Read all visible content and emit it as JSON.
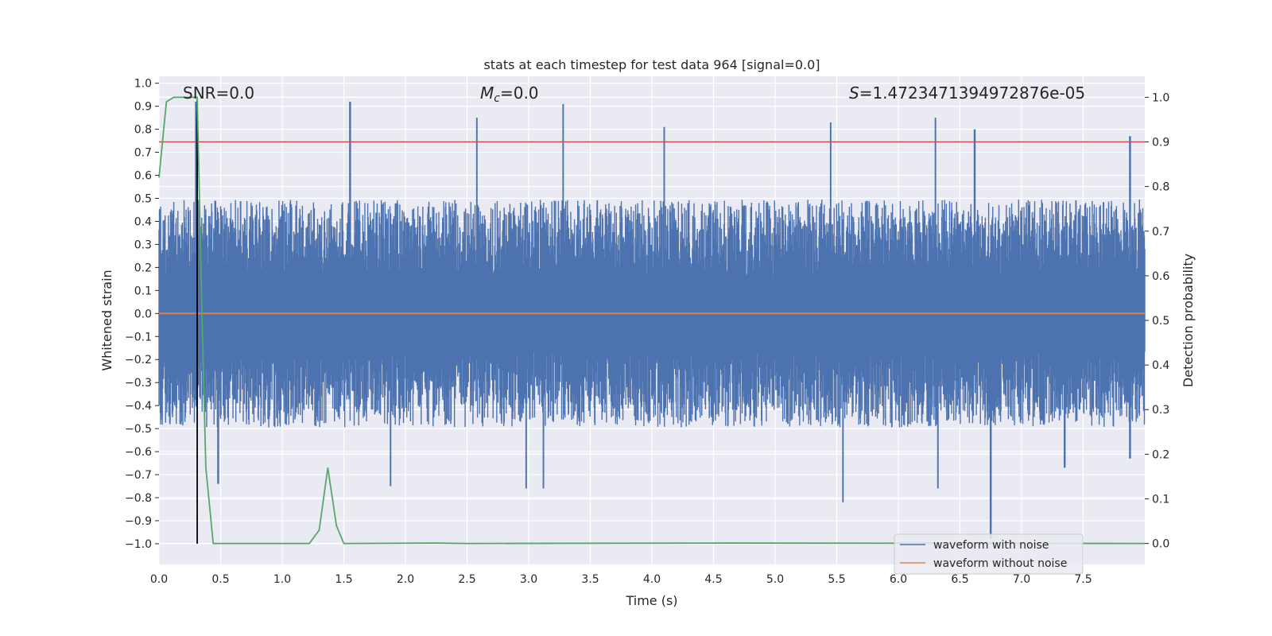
{
  "chart_data": {
    "type": "line",
    "title": "stats at each timestep for test data 964 [signal=0.0]",
    "xlabel": "Time (s)",
    "ylabel": "Whitened strain",
    "y2label": "Detection probability",
    "xlim": [
      0.0,
      8.0
    ],
    "ylim": [
      -1.09,
      1.03
    ],
    "y2lim": [
      -0.047,
      1.047
    ],
    "xticks": [
      "0.0",
      "0.5",
      "1.0",
      "1.5",
      "2.0",
      "2.5",
      "3.0",
      "3.5",
      "4.0",
      "4.5",
      "5.0",
      "5.5",
      "6.0",
      "6.5",
      "7.0",
      "7.5"
    ],
    "yticks": [
      "1.0",
      "0.9",
      "0.8",
      "0.7",
      "0.6",
      "0.5",
      "0.4",
      "0.3",
      "0.2",
      "0.1",
      "0.0",
      "−0.1",
      "−0.2",
      "−0.3",
      "−0.4",
      "−0.5",
      "−0.6",
      "−0.7",
      "−0.8",
      "−0.9",
      "−1.0"
    ],
    "y2ticks": [
      "1.0",
      "0.9",
      "0.8",
      "0.7",
      "0.6",
      "0.5",
      "0.4",
      "0.3",
      "0.2",
      "0.1",
      "0.0"
    ],
    "grid": true,
    "legend_placement": "lower-right",
    "annotations": {
      "snr": "SNR=0.0",
      "mc_symbol": "M",
      "mc_sub": "c",
      "mc_rest": "=0.0",
      "s_symbol": "S",
      "s_rest": "=1.4723471394972876e-05"
    },
    "series": [
      {
        "name": "waveform with noise",
        "color": "#4c72b0",
        "axis": "left",
        "description_values": {
          "max_spikes": [
            [
              0.3,
              0.92
            ],
            [
              1.55,
              0.92
            ],
            [
              2.58,
              0.85
            ],
            [
              3.28,
              0.91
            ],
            [
              4.1,
              0.81
            ],
            [
              5.45,
              0.83
            ],
            [
              6.3,
              0.85
            ],
            [
              6.62,
              0.8
            ],
            [
              7.88,
              0.77
            ]
          ],
          "min_spikes": [
            [
              0.48,
              -0.74
            ],
            [
              1.88,
              -0.75
            ],
            [
              2.98,
              -0.76
            ],
            [
              3.12,
              -0.76
            ],
            [
              5.55,
              -0.82
            ],
            [
              6.32,
              -0.76
            ],
            [
              6.75,
              -0.98
            ],
            [
              7.35,
              -0.67
            ],
            [
              7.88,
              -0.63
            ]
          ],
          "typical_envelope": [
            -0.45,
            0.45
          ]
        }
      },
      {
        "name": "waveform without noise",
        "color": "#dd8452",
        "axis": "left",
        "x": [
          0.0,
          8.0
        ],
        "values": [
          0.0,
          0.0
        ]
      },
      {
        "name": "",
        "color": "#55a868",
        "axis": "right",
        "x": [
          0.0,
          0.06,
          0.12,
          0.2,
          0.25,
          0.31,
          0.35,
          0.38,
          0.44,
          1.0,
          1.22,
          1.3,
          1.37,
          1.44,
          1.5,
          2.25,
          2.5,
          4.6,
          8.0
        ],
        "values": [
          0.82,
          0.99,
          1.0,
          1.0,
          1.0,
          1.0,
          0.5,
          0.17,
          0.0,
          0.0,
          0.0,
          0.03,
          0.17,
          0.04,
          0.0,
          0.001,
          0.0,
          0.001,
          0.0
        ]
      }
    ],
    "hlines": [
      {
        "axis": "right",
        "value": 0.9,
        "color": "#c44e52"
      }
    ],
    "vlines": [
      {
        "axis": "left",
        "x": 0.31,
        "from": -1.0,
        "to": 0.93,
        "color": "#000000"
      }
    ]
  }
}
